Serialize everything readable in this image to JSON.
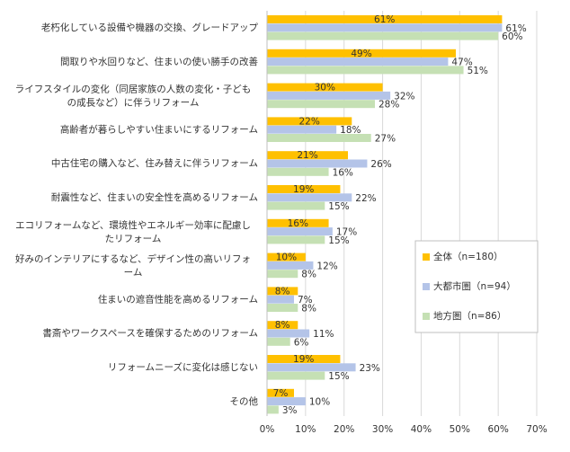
{
  "chart_data": {
    "type": "hbar",
    "categories": [
      "老朽化している設備や機器の交換、グレードアップ",
      "間取りや水回りなど、住まいの使い勝手の改善",
      "ライフスタイルの変化（同居家族の人数の変化・子どもの成長など）に伴うリフォーム",
      "高齢者が暮らしやすい住まいにするリフォーム",
      "中古住宅の購入など、住み替えに伴うリフォーム",
      "耐震性など、住まいの安全性を高めるリフォーム",
      "エコリフォームなど、環境性やエネルギー効率に配慮したリフォーム",
      "好みのインテリアにするなど、デザイン性の高いリフォーム",
      "住まいの遮音性能を高めるリフォーム",
      "書斎やワークスペースを確保するためのリフォーム",
      "リフォームニーズに変化は感じない",
      "その他"
    ],
    "series": [
      {
        "name": "全体（n=180）",
        "color": "#ffc000",
        "values": [
          61,
          49,
          30,
          22,
          21,
          19,
          16,
          10,
          8,
          8,
          19,
          7
        ],
        "value_labels": [
          "61%",
          "49%",
          "30%",
          "22%",
          "21%",
          "19%",
          "16%",
          "10%",
          "8%",
          "8%",
          "19%",
          "7%"
        ]
      },
      {
        "name": "大都市圏（n=94）",
        "color": "#b4c4e8",
        "values": [
          61,
          47,
          32,
          18,
          26,
          22,
          17,
          12,
          7,
          11,
          23,
          10
        ],
        "value_labels": [
          "61%",
          "47%",
          "32%",
          "18%",
          "26%",
          "22%",
          "17%",
          "12%",
          "7%",
          "11%",
          "23%",
          "10%"
        ]
      },
      {
        "name": "地方圏（n=86）",
        "color": "#c5e0b4",
        "values": [
          60,
          51,
          28,
          27,
          16,
          15,
          15,
          8,
          8,
          6,
          15,
          3
        ],
        "value_labels": [
          "60%",
          "51%",
          "28%",
          "27%",
          "16%",
          "15%",
          "15%",
          "8%",
          "8%",
          "6%",
          "15%",
          "3%"
        ]
      }
    ],
    "xlim": [
      0,
      70
    ],
    "xticks": [
      {
        "value": 0,
        "label": "0%"
      },
      {
        "value": 10,
        "label": "10%"
      },
      {
        "value": 20,
        "label": "20%"
      },
      {
        "value": 30,
        "label": "30%"
      },
      {
        "value": 40,
        "label": "40%"
      },
      {
        "value": 50,
        "label": "50%"
      },
      {
        "value": 60,
        "label": "60%"
      },
      {
        "value": 70,
        "label": "70%"
      }
    ],
    "grid": true,
    "legend": "right"
  }
}
